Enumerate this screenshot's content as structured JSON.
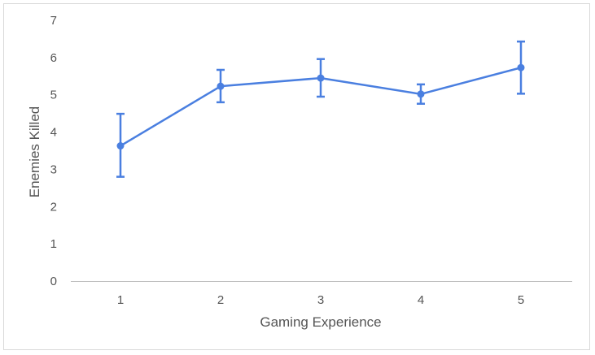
{
  "chart_data": {
    "type": "line",
    "title": "",
    "xlabel": "Gaming Experience",
    "ylabel": "Enemies Killed",
    "x": [
      1,
      2,
      3,
      4,
      5
    ],
    "xticks": [
      "1",
      "2",
      "3",
      "4",
      "5"
    ],
    "ylim": [
      0,
      7
    ],
    "yticks": [
      0,
      1,
      2,
      3,
      4,
      5,
      6,
      7
    ],
    "grid": false,
    "legend": "none",
    "series": [
      {
        "values": [
          3.63,
          5.23,
          5.45,
          5.02,
          5.73
        ],
        "error_low": [
          2.8,
          4.8,
          4.95,
          4.76,
          5.03
        ],
        "error_high": [
          4.49,
          5.67,
          5.96,
          5.28,
          6.43
        ],
        "color": "#4a7fe0"
      }
    ]
  }
}
